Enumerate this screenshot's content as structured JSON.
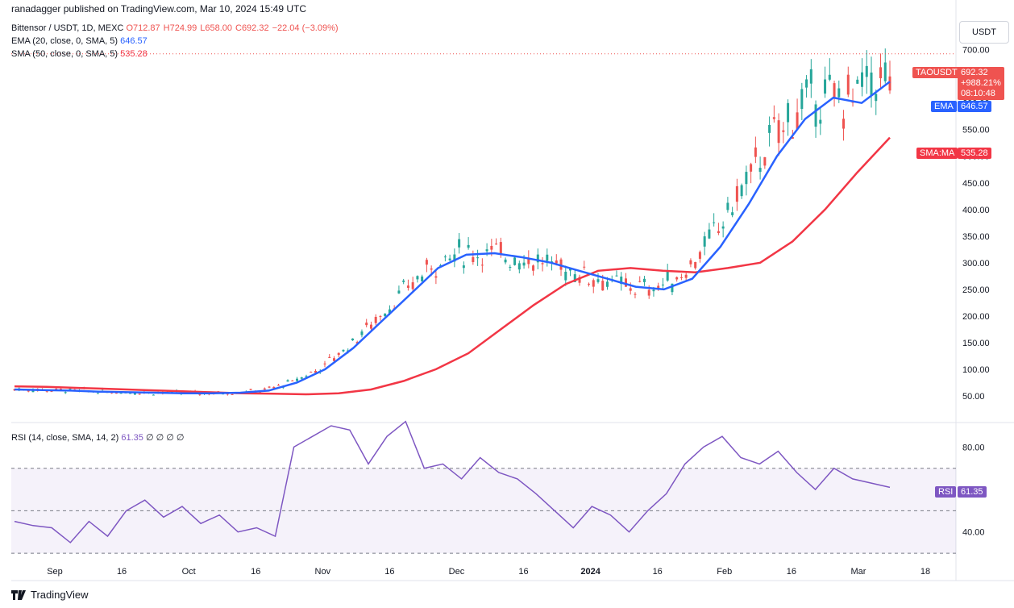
{
  "header": {
    "published": "ranadagger published on TradingView.com, Mar 10, 2024 15:49 UTC",
    "symbol_line": "Bittensor / USDT, 1D, MEXC",
    "ohlc": {
      "open": "O712.87",
      "high": "H724.99",
      "low": "L658.00",
      "close": "C692.32",
      "change": "−22.04 (−3.09%)"
    },
    "ema_line": "EMA (20, close, 0, SMA, 5)",
    "ema_value": "646.57",
    "sma_line": "SMA (50, close, 0, SMA, 5)",
    "sma_value": "535.28",
    "rsi_line": "RSI (14, close, SMA, 14, 2)",
    "rsi_value": "61.35",
    "rsi_extra": "∅ ∅ ∅ ∅"
  },
  "currency_button": "USDT",
  "price_tag": {
    "symbol": "TAOUSDT",
    "price": "692.32",
    "change": "+988.21%",
    "countdown": "08:10:48"
  },
  "ema_tag": {
    "label": "EMA",
    "value": "646.57"
  },
  "sma_tag": {
    "label": "SMA:MA",
    "value": "535.28"
  },
  "rsi_tag": {
    "label": "RSI",
    "value": "61.35"
  },
  "brand": "TradingView",
  "colors": {
    "up": "#26a69a",
    "down": "#ef5350",
    "ema": "#2962ff",
    "sma": "#f23645",
    "rsi": "#7e57c2"
  },
  "chart_data": {
    "type": "candlestick",
    "price_axis_ticks": [
      "50.00",
      "100.00",
      "150.00",
      "200.00",
      "250.00",
      "300.00",
      "350.00",
      "400.00",
      "450.00",
      "500.00",
      "550.00",
      "600.00",
      "650.00",
      "700.00"
    ],
    "price_range": [
      0,
      760
    ],
    "time_axis_ticks": [
      "Sep",
      "16",
      "Oct",
      "16",
      "Nov",
      "16",
      "Dec",
      "16",
      "2024",
      "16",
      "Feb",
      "16",
      "Mar",
      "18"
    ],
    "rsi_axis_ticks": [
      "40.00",
      "80.00"
    ],
    "rsi_range": [
      27,
      90
    ],
    "rsi_bands": [
      30,
      50,
      70
    ],
    "series": [
      {
        "name": "EMA (20)",
        "values": [
          62,
          61,
          60,
          58,
          57,
          56,
          55,
          55,
          56,
          60,
          75,
          100,
          140,
          190,
          240,
          290,
          315,
          318,
          310,
          300,
          285,
          270,
          255,
          250,
          270,
          330,
          410,
          500,
          570,
          610,
          600,
          640
        ]
      },
      {
        "name": "SMA (50)",
        "values": [
          68,
          67,
          65,
          63,
          61,
          59,
          57,
          55,
          54,
          53,
          55,
          62,
          78,
          100,
          130,
          175,
          220,
          260,
          285,
          290,
          285,
          282,
          290,
          300,
          340,
          400,
          470,
          535
        ]
      },
      {
        "name": "RSI (14)",
        "values": [
          45,
          43,
          42,
          35,
          45,
          38,
          50,
          55,
          47,
          52,
          44,
          48,
          40,
          42,
          38,
          80,
          85,
          90,
          88,
          72,
          85,
          92,
          70,
          72,
          65,
          75,
          68,
          65,
          58,
          50,
          42,
          52,
          48,
          40,
          50,
          58,
          72,
          80,
          85,
          75,
          72,
          78,
          68,
          60,
          70,
          65,
          63,
          61
        ]
      }
    ]
  }
}
